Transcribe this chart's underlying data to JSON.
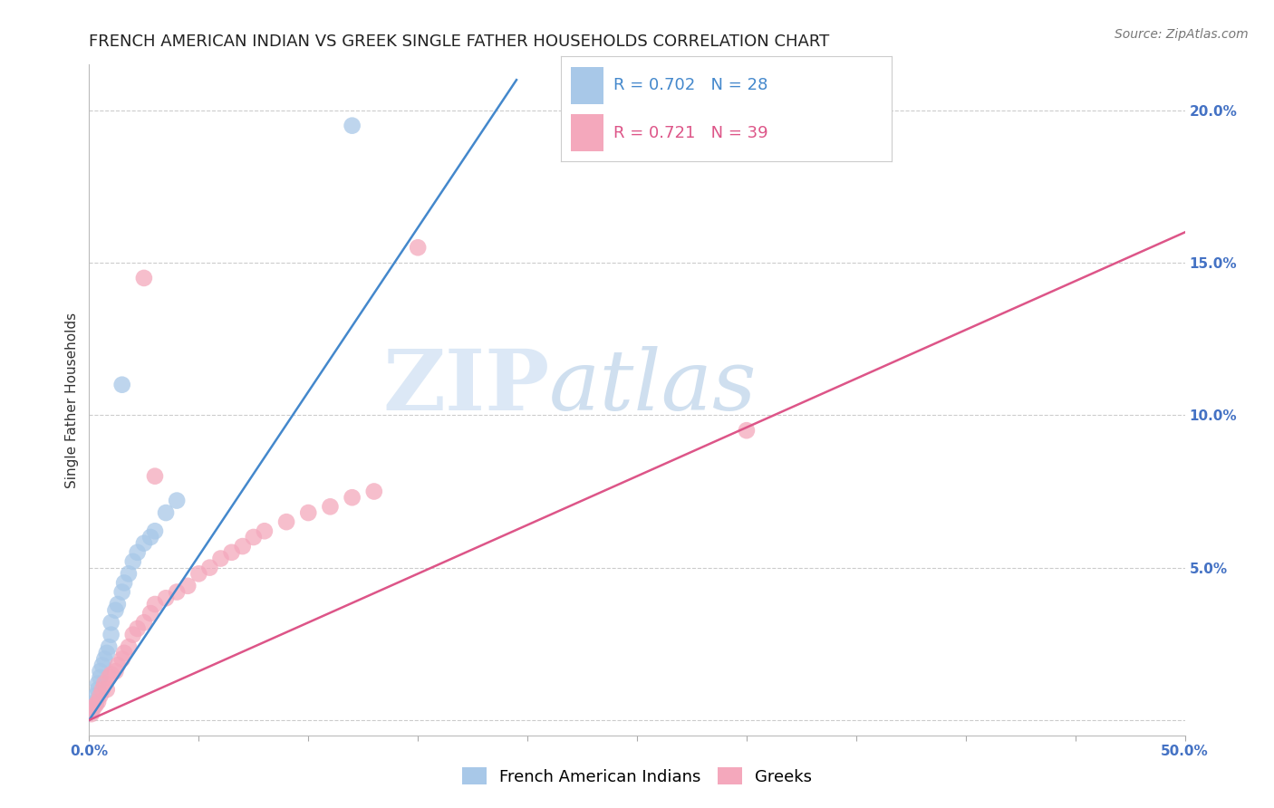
{
  "title": "FRENCH AMERICAN INDIAN VS GREEK SINGLE FATHER HOUSEHOLDS CORRELATION CHART",
  "source": "Source: ZipAtlas.com",
  "ylabel": "Single Father Households",
  "xlim": [
    0.0,
    0.5
  ],
  "ylim": [
    -0.005,
    0.215
  ],
  "xticks": [
    0.0,
    0.05,
    0.1,
    0.15,
    0.2,
    0.25,
    0.3,
    0.35,
    0.4,
    0.45,
    0.5
  ],
  "yticks": [
    0.0,
    0.05,
    0.1,
    0.15,
    0.2
  ],
  "yticklabels": [
    "",
    "5.0%",
    "10.0%",
    "15.0%",
    "20.0%"
  ],
  "blue_R": 0.702,
  "blue_N": 28,
  "pink_R": 0.721,
  "pink_N": 39,
  "blue_label": "French American Indians",
  "pink_label": "Greeks",
  "blue_color": "#a8c8e8",
  "pink_color": "#f4a8bc",
  "blue_line_color": "#4488cc",
  "pink_line_color": "#dd5588",
  "blue_scatter": [
    [
      0.001,
      0.003
    ],
    [
      0.002,
      0.005
    ],
    [
      0.003,
      0.006
    ],
    [
      0.003,
      0.008
    ],
    [
      0.004,
      0.01
    ],
    [
      0.004,
      0.012
    ],
    [
      0.005,
      0.014
    ],
    [
      0.005,
      0.016
    ],
    [
      0.006,
      0.018
    ],
    [
      0.007,
      0.02
    ],
    [
      0.008,
      0.022
    ],
    [
      0.009,
      0.024
    ],
    [
      0.01,
      0.028
    ],
    [
      0.01,
      0.032
    ],
    [
      0.012,
      0.036
    ],
    [
      0.013,
      0.038
    ],
    [
      0.015,
      0.042
    ],
    [
      0.016,
      0.045
    ],
    [
      0.018,
      0.048
    ],
    [
      0.02,
      0.052
    ],
    [
      0.022,
      0.055
    ],
    [
      0.025,
      0.058
    ],
    [
      0.028,
      0.06
    ],
    [
      0.03,
      0.062
    ],
    [
      0.035,
      0.068
    ],
    [
      0.04,
      0.072
    ],
    [
      0.015,
      0.11
    ],
    [
      0.12,
      0.195
    ]
  ],
  "pink_scatter": [
    [
      0.001,
      0.002
    ],
    [
      0.002,
      0.004
    ],
    [
      0.003,
      0.005
    ],
    [
      0.004,
      0.006
    ],
    [
      0.005,
      0.008
    ],
    [
      0.006,
      0.01
    ],
    [
      0.007,
      0.012
    ],
    [
      0.008,
      0.01
    ],
    [
      0.009,
      0.014
    ],
    [
      0.01,
      0.015
    ],
    [
      0.012,
      0.016
    ],
    [
      0.013,
      0.018
    ],
    [
      0.015,
      0.02
    ],
    [
      0.016,
      0.022
    ],
    [
      0.018,
      0.024
    ],
    [
      0.02,
      0.028
    ],
    [
      0.022,
      0.03
    ],
    [
      0.025,
      0.032
    ],
    [
      0.028,
      0.035
    ],
    [
      0.03,
      0.038
    ],
    [
      0.035,
      0.04
    ],
    [
      0.04,
      0.042
    ],
    [
      0.045,
      0.044
    ],
    [
      0.05,
      0.048
    ],
    [
      0.055,
      0.05
    ],
    [
      0.06,
      0.053
    ],
    [
      0.065,
      0.055
    ],
    [
      0.07,
      0.057
    ],
    [
      0.075,
      0.06
    ],
    [
      0.08,
      0.062
    ],
    [
      0.09,
      0.065
    ],
    [
      0.1,
      0.068
    ],
    [
      0.11,
      0.07
    ],
    [
      0.12,
      0.073
    ],
    [
      0.13,
      0.075
    ],
    [
      0.03,
      0.08
    ],
    [
      0.025,
      0.145
    ],
    [
      0.15,
      0.155
    ],
    [
      0.3,
      0.095
    ]
  ],
  "blue_line_x": [
    0.0,
    0.195
  ],
  "blue_line_y": [
    0.0,
    0.21
  ],
  "pink_line_x": [
    0.0,
    0.5
  ],
  "pink_line_y": [
    0.0,
    0.16
  ],
  "watermark_zip": "ZIP",
  "watermark_atlas": "atlas",
  "background_color": "#ffffff",
  "grid_color": "#cccccc",
  "title_fontsize": 13,
  "axis_fontsize": 11,
  "tick_fontsize": 11,
  "tick_color": "#4472c4",
  "legend_fontsize": 13
}
